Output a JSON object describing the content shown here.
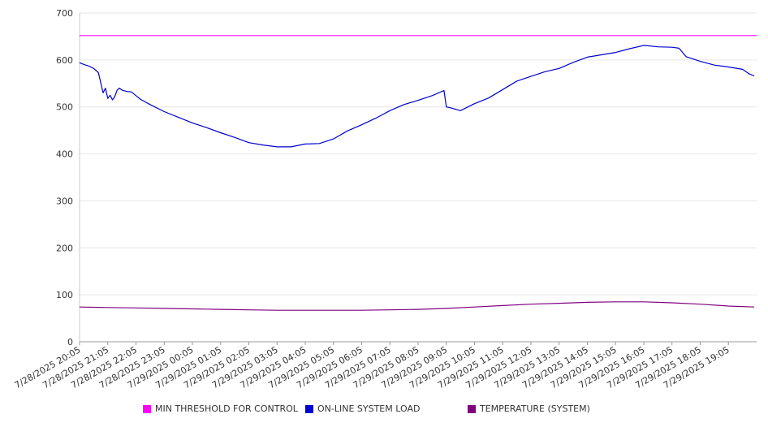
{
  "chart_data": {
    "type": "line",
    "title": "",
    "xlabel": "",
    "ylabel": "",
    "ylim": [
      0,
      700
    ],
    "y_ticks": [
      0,
      100,
      200,
      300,
      400,
      500,
      600,
      700
    ],
    "x_ticks": [
      "7/28/2025 20:05",
      "7/28/2025 21:05",
      "7/28/2025 22:05",
      "7/28/2025 23:05",
      "7/29/2025 00:05",
      "7/29/2025 01:05",
      "7/29/2025 02:05",
      "7/29/2025 03:05",
      "7/29/2025 04:05",
      "7/29/2025 05:05",
      "7/29/2025 06:05",
      "7/29/2025 07:05",
      "7/29/2025 08:05",
      "7/29/2025 09:05",
      "7/29/2025 10:05",
      "7/29/2025 11:05",
      "7/29/2025 12:05",
      "7/29/2025 13:05",
      "7/29/2025 14:05",
      "7/29/2025 15:05",
      "7/29/2025 16:05",
      "7/29/2025 17:05",
      "7/29/2025 18:05",
      "7/29/2025 19:05"
    ],
    "x_range": [
      "7/28/2025 20:05",
      "7/29/2025 20:05"
    ],
    "grid": true,
    "legend_position": "bottom",
    "series": [
      {
        "name": "MIN THRESHOLD FOR CONTROL",
        "color": "#ff00ff",
        "x": [
          "7/28/2025 20:05",
          "7/29/2025 20:05"
        ],
        "values": [
          652,
          652
        ]
      },
      {
        "name": "ON-LINE SYSTEM LOAD",
        "color": "#0000cc",
        "x": [
          "7/28/2025 20:05",
          "7/28/2025 20:15",
          "7/28/2025 20:25",
          "7/28/2025 20:35",
          "7/28/2025 20:45",
          "7/28/2025 20:55",
          "7/28/2025 21:00",
          "7/28/2025 21:05",
          "7/28/2025 21:10",
          "7/28/2025 21:15",
          "7/28/2025 21:20",
          "7/28/2025 21:25",
          "7/28/2025 21:30",
          "7/28/2025 21:35",
          "7/28/2025 21:45",
          "7/28/2025 21:55",
          "7/28/2025 22:05",
          "7/28/2025 22:15",
          "7/28/2025 22:35",
          "7/28/2025 23:05",
          "7/28/2025 23:35",
          "7/29/2025 00:05",
          "7/29/2025 00:35",
          "7/29/2025 01:05",
          "7/29/2025 01:35",
          "7/29/2025 02:05",
          "7/29/2025 02:35",
          "7/29/2025 03:05",
          "7/29/2025 03:35",
          "7/29/2025 04:05",
          "7/29/2025 04:35",
          "7/29/2025 05:05",
          "7/29/2025 05:35",
          "7/29/2025 06:05",
          "7/29/2025 06:35",
          "7/29/2025 07:05",
          "7/29/2025 07:35",
          "7/29/2025 08:05",
          "7/29/2025 08:35",
          "7/29/2025 09:00",
          "7/29/2025 09:05",
          "7/29/2025 09:15",
          "7/29/2025 09:35",
          "7/29/2025 10:05",
          "7/29/2025 10:35",
          "7/29/2025 11:05",
          "7/29/2025 11:35",
          "7/29/2025 12:05",
          "7/29/2025 12:35",
          "7/29/2025 13:05",
          "7/29/2025 13:35",
          "7/29/2025 14:05",
          "7/29/2025 14:35",
          "7/29/2025 15:05",
          "7/29/2025 15:35",
          "7/29/2025 16:05",
          "7/29/2025 16:35",
          "7/29/2025 17:05",
          "7/29/2025 17:20",
          "7/29/2025 17:35",
          "7/29/2025 18:05",
          "7/29/2025 18:35",
          "7/29/2025 19:05",
          "7/29/2025 19:35",
          "7/29/2025 19:50",
          "7/29/2025 20:00"
        ],
        "values": [
          594,
          590,
          587,
          582,
          573,
          530,
          540,
          518,
          525,
          515,
          522,
          536,
          540,
          536,
          533,
          532,
          524,
          516,
          505,
          490,
          478,
          466,
          456,
          445,
          435,
          424,
          419,
          415,
          415,
          421,
          422,
          432,
          449,
          462,
          476,
          492,
          505,
          514,
          524,
          535,
          500,
          498,
          492,
          507,
          519,
          537,
          555,
          565,
          575,
          582,
          595,
          606,
          611,
          616,
          624,
          631,
          628,
          627,
          625,
          607,
          597,
          589,
          585,
          580,
          570,
          566
        ]
      },
      {
        "name": "TEMPERATURE (SYSTEM)",
        "color": "#800080",
        "x": [
          "7/28/2025 20:05",
          "7/28/2025 21:05",
          "7/28/2025 22:05",
          "7/28/2025 23:05",
          "7/29/2025 00:05",
          "7/29/2025 01:05",
          "7/29/2025 02:05",
          "7/29/2025 03:05",
          "7/29/2025 04:05",
          "7/29/2025 05:05",
          "7/29/2025 06:05",
          "7/29/2025 07:05",
          "7/29/2025 08:05",
          "7/29/2025 09:05",
          "7/29/2025 10:05",
          "7/29/2025 11:05",
          "7/29/2025 12:05",
          "7/29/2025 13:05",
          "7/29/2025 14:05",
          "7/29/2025 15:05",
          "7/29/2025 16:05",
          "7/29/2025 17:05",
          "7/29/2025 18:05",
          "7/29/2025 19:05",
          "7/29/2025 20:00"
        ],
        "values": [
          74,
          73,
          72,
          71,
          70,
          69,
          68,
          67,
          67,
          67,
          67,
          68,
          69,
          71,
          74,
          77,
          80,
          82,
          84,
          85,
          85,
          83,
          80,
          76,
          74
        ]
      }
    ]
  }
}
